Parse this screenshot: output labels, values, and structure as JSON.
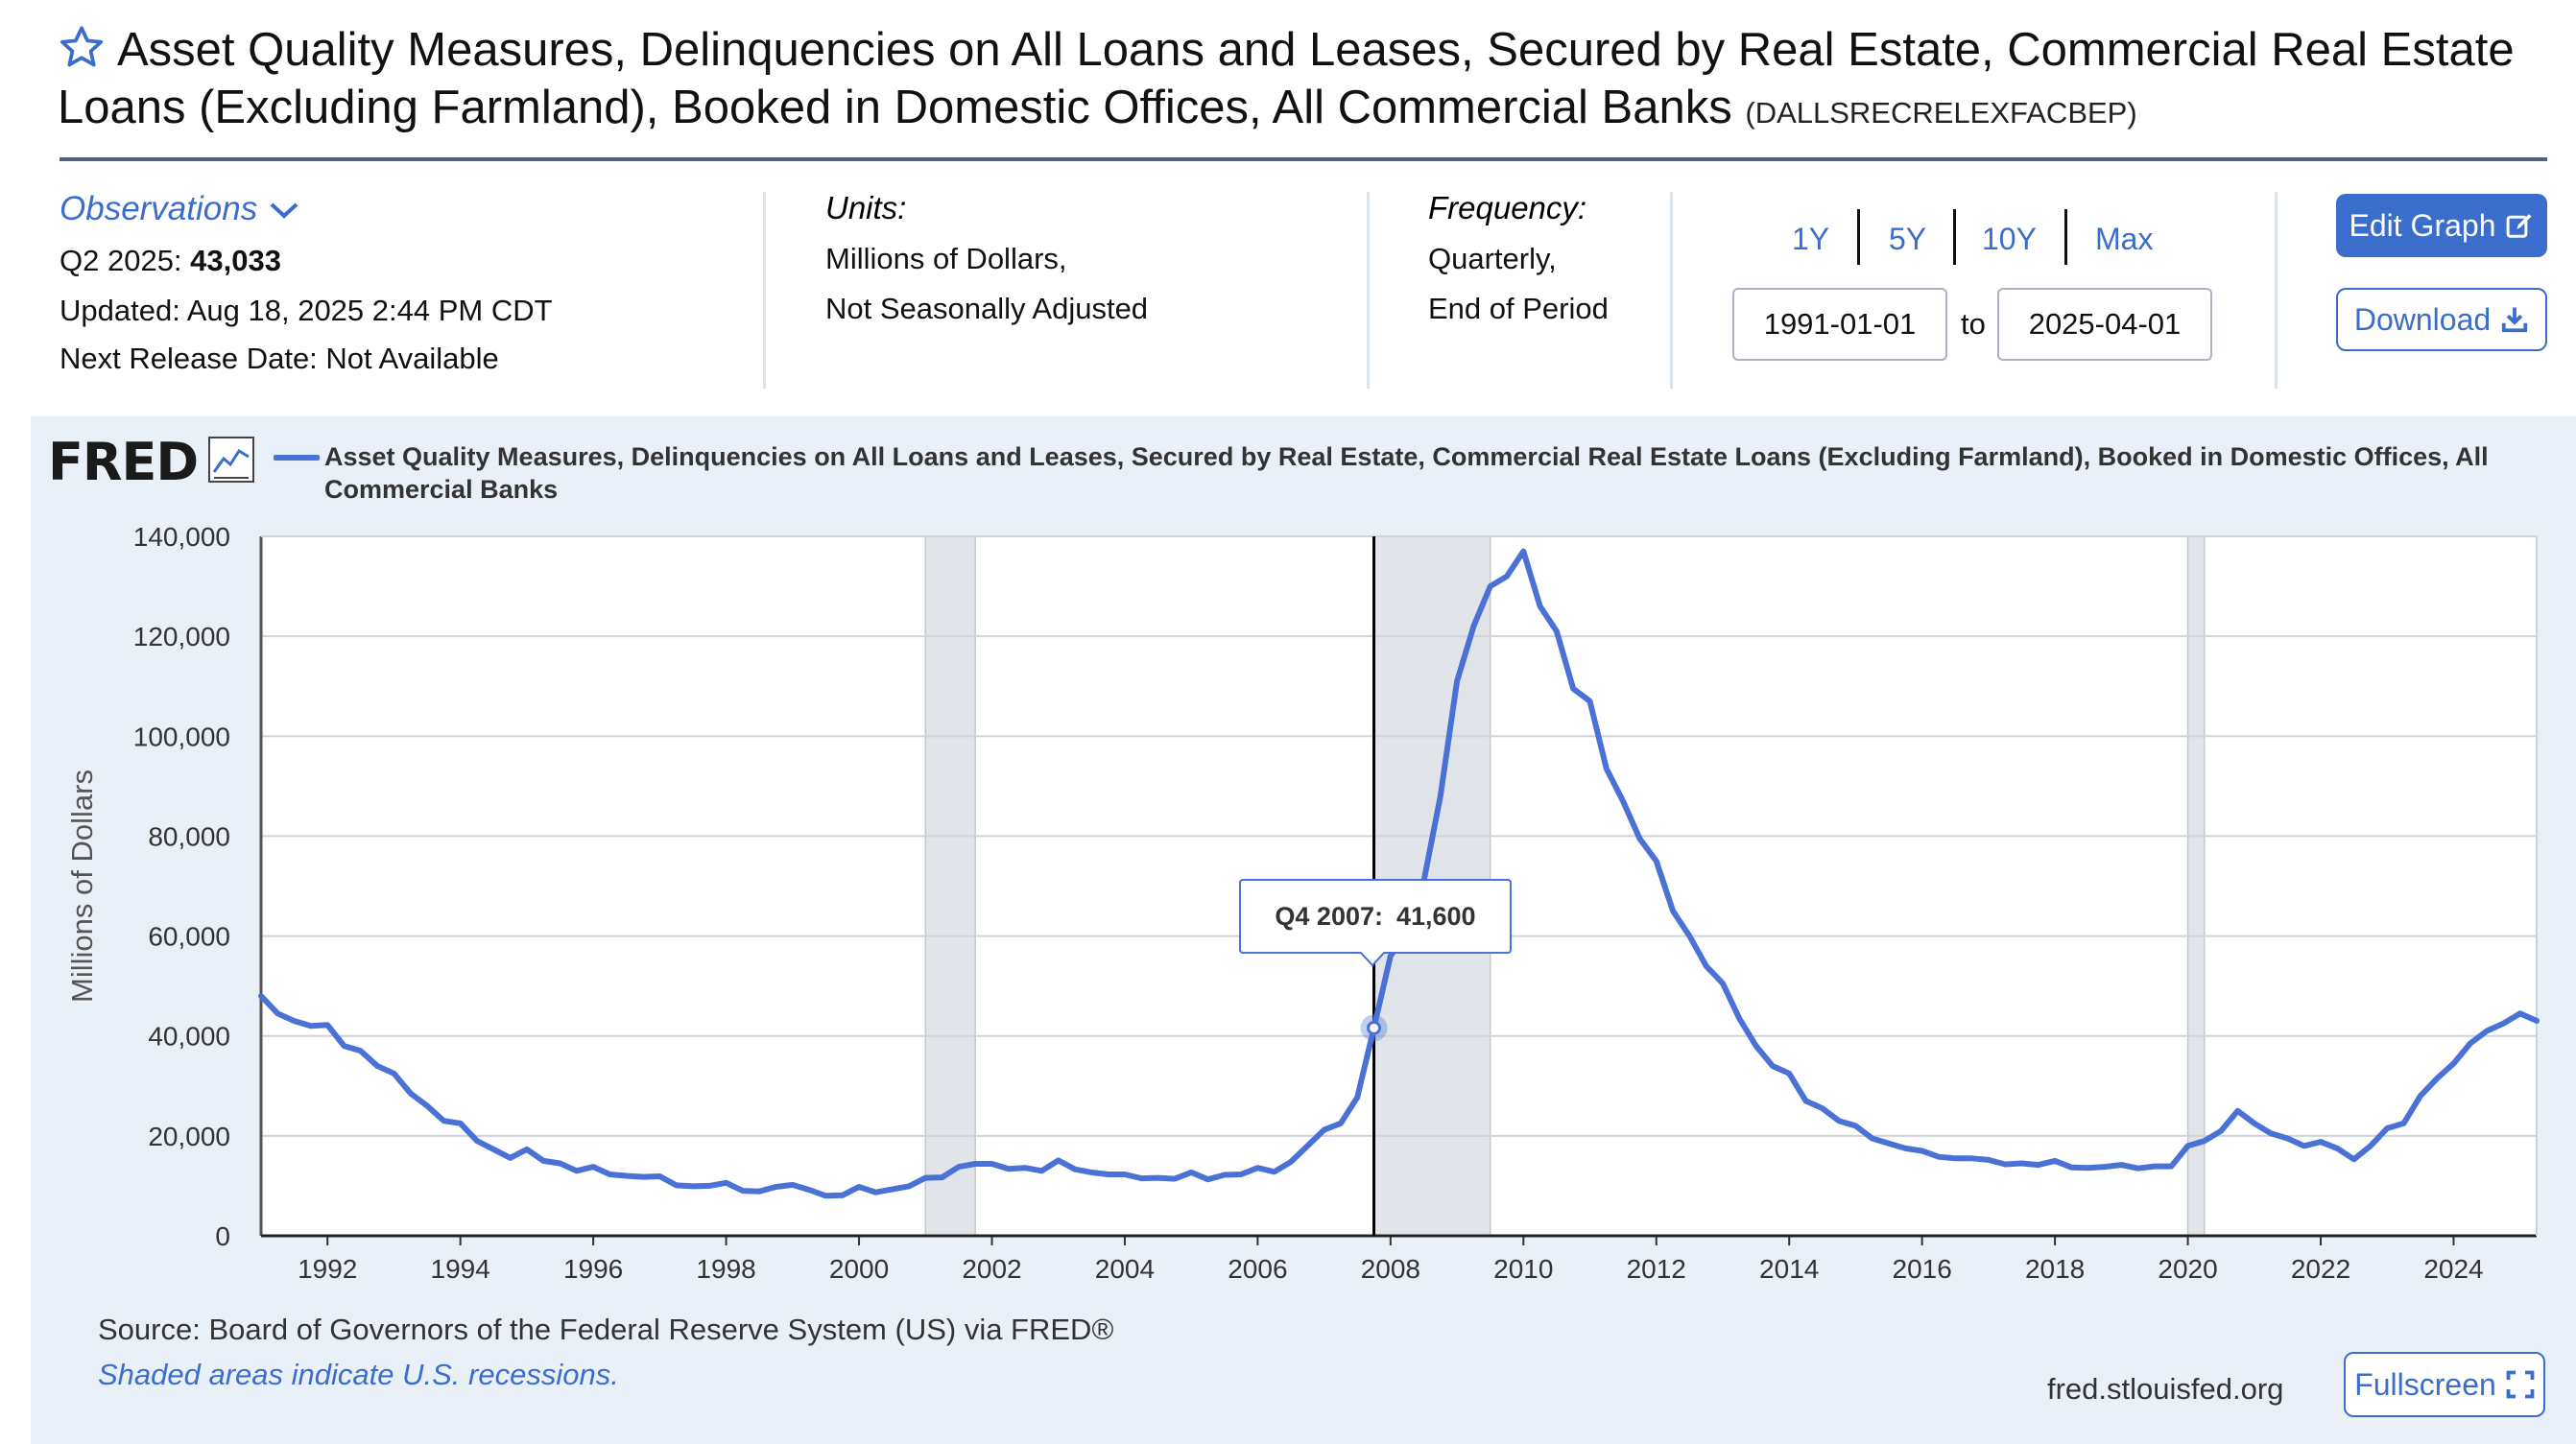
{
  "header": {
    "title": "Asset Quality Measures, Delinquencies on All Loans and Leases, Secured by Real Estate, Commercial Real Estate Loans (Excluding Farmland), Booked in Domestic Offices, All Commercial Banks",
    "series_id": "(DALLSRECRELEXFACBEP)",
    "star_icon": "star-outline-icon"
  },
  "meta": {
    "observations_label": "Observations",
    "latest_period": "Q2 2025:",
    "latest_value": "43,033",
    "updated": "Updated: Aug 18, 2025 2:44 PM CDT",
    "next_release": "Next Release Date: Not Available",
    "units_label": "Units:",
    "units_line1": "Millions of Dollars,",
    "units_line2": "Not Seasonally Adjusted",
    "frequency_label": "Frequency:",
    "frequency_line1": "Quarterly,",
    "frequency_line2": "End of Period"
  },
  "controls": {
    "range_1y": "1Y",
    "range_5y": "5Y",
    "range_10y": "10Y",
    "range_max": "Max",
    "start_date": "1991-01-01",
    "to_label": "to",
    "end_date": "2025-04-01",
    "edit_graph": "Edit Graph",
    "download": "Download",
    "fullscreen": "Fullscreen"
  },
  "chart_panel": {
    "logo_text": "FRED",
    "legend_label": "Asset Quality Measures, Delinquencies on All Loans and Leases, Secured by Real Estate, Commercial Real Estate Loans (Excluding Farmland), Booked in Domestic Offices, All Commercial Banks",
    "tooltip_label": "Q4 2007:",
    "tooltip_value": "41,600",
    "source": "Source: Board of Governors of the Federal Reserve System (US) via FRED®",
    "shaded_note": "Shaded areas indicate U.S. recessions.",
    "url": "fred.stlouisfed.org"
  },
  "colors": {
    "accent": "#3b6dcc",
    "series_line": "#4a72d6",
    "panel_bg": "#eaf0f8",
    "recession": "#e1e5ea"
  },
  "chart_data": {
    "type": "line",
    "title": "",
    "xlabel": "",
    "ylabel": "Millions of Dollars",
    "xlim": [
      1991.0,
      2025.25
    ],
    "ylim": [
      0,
      140000
    ],
    "y_ticks": [
      0,
      20000,
      40000,
      60000,
      80000,
      100000,
      120000,
      140000
    ],
    "y_tick_labels": [
      "0",
      "20,000",
      "40,000",
      "60,000",
      "80,000",
      "100,000",
      "120,000",
      "140,000"
    ],
    "x_ticks": [
      1992,
      1994,
      1996,
      1998,
      2000,
      2002,
      2004,
      2006,
      2008,
      2010,
      2012,
      2014,
      2016,
      2018,
      2020,
      2022,
      2024
    ],
    "grid": true,
    "legend_position": "top",
    "recessions": [
      [
        2001.0,
        2001.75
      ],
      [
        2007.75,
        2009.5
      ],
      [
        2020.0,
        2020.25
      ]
    ],
    "highlight": {
      "x": 2007.75,
      "label": "Q4 2007",
      "value": 41600
    },
    "series": [
      {
        "name": "Asset Quality Measures, Delinquencies on All Loans and Leases, Secured by Real Estate, Commercial Real Estate Loans (Excluding Farmland), Booked in Domestic Offices, All Commercial Banks",
        "x": [
          1991.0,
          1991.25,
          1991.5,
          1991.75,
          1992.0,
          1992.25,
          1992.5,
          1992.75,
          1993.0,
          1993.25,
          1993.5,
          1993.75,
          1994.0,
          1994.25,
          1994.5,
          1994.75,
          1995.0,
          1995.25,
          1995.5,
          1995.75,
          1996.0,
          1996.25,
          1996.5,
          1996.75,
          1997.0,
          1997.25,
          1997.5,
          1997.75,
          1998.0,
          1998.25,
          1998.5,
          1998.75,
          1999.0,
          1999.25,
          1999.5,
          1999.75,
          2000.0,
          2000.25,
          2000.5,
          2000.75,
          2001.0,
          2001.25,
          2001.5,
          2001.75,
          2002.0,
          2002.25,
          2002.5,
          2002.75,
          2003.0,
          2003.25,
          2003.5,
          2003.75,
          2004.0,
          2004.25,
          2004.5,
          2004.75,
          2005.0,
          2005.25,
          2005.5,
          2005.75,
          2006.0,
          2006.25,
          2006.5,
          2006.75,
          2007.0,
          2007.25,
          2007.5,
          2007.75,
          2008.0,
          2008.25,
          2008.5,
          2008.75,
          2009.0,
          2009.25,
          2009.5,
          2009.75,
          2010.0,
          2010.25,
          2010.5,
          2010.75,
          2011.0,
          2011.25,
          2011.5,
          2011.75,
          2012.0,
          2012.25,
          2012.5,
          2012.75,
          2013.0,
          2013.25,
          2013.5,
          2013.75,
          2014.0,
          2014.25,
          2014.5,
          2014.75,
          2015.0,
          2015.25,
          2015.5,
          2015.75,
          2016.0,
          2016.25,
          2016.5,
          2016.75,
          2017.0,
          2017.25,
          2017.5,
          2017.75,
          2018.0,
          2018.25,
          2018.5,
          2018.75,
          2019.0,
          2019.25,
          2019.5,
          2019.75,
          2020.0,
          2020.25,
          2020.5,
          2020.75,
          2021.0,
          2021.25,
          2021.5,
          2021.75,
          2022.0,
          2022.25,
          2022.5,
          2022.75,
          2023.0,
          2023.25,
          2023.5,
          2023.75,
          2024.0,
          2024.25,
          2024.5,
          2024.75,
          2025.0,
          2025.25
        ],
        "values": [
          48000,
          44500,
          43000,
          42000,
          42200,
          38000,
          37000,
          34000,
          32500,
          28500,
          26000,
          23000,
          22500,
          19000,
          17300,
          15600,
          17300,
          15000,
          14500,
          13000,
          13800,
          12300,
          12000,
          11800,
          11900,
          10100,
          9900,
          10000,
          10600,
          9000,
          8900,
          9800,
          10200,
          9200,
          8000,
          8100,
          9800,
          8700,
          9300,
          9900,
          11600,
          11700,
          13800,
          14400,
          14400,
          13400,
          13600,
          13000,
          15100,
          13300,
          12700,
          12300,
          12300,
          11500,
          11600,
          11400,
          12700,
          11300,
          12200,
          12300,
          13600,
          12800,
          14800,
          18000,
          21200,
          22500,
          27700,
          41600,
          56000,
          61000,
          71000,
          88000,
          111000,
          122000,
          130000,
          132000,
          137000,
          126000,
          121000,
          109500,
          107000,
          93500,
          87000,
          79500,
          75000,
          65000,
          60000,
          54000,
          50500,
          43500,
          38000,
          34000,
          32500,
          27000,
          25500,
          23000,
          22000,
          19500,
          18500,
          17500,
          17000,
          15800,
          15500,
          15500,
          15200,
          14300,
          14500,
          14200,
          15000,
          13700,
          13600,
          13800,
          14200,
          13500,
          13900,
          13900,
          18000,
          19000,
          21000,
          25000,
          22500,
          20500,
          19500,
          18000,
          18800,
          17500,
          15300,
          18000,
          21500,
          22500,
          28000,
          31500,
          34500,
          38500,
          41000,
          42500,
          44500,
          43033
        ]
      }
    ]
  }
}
